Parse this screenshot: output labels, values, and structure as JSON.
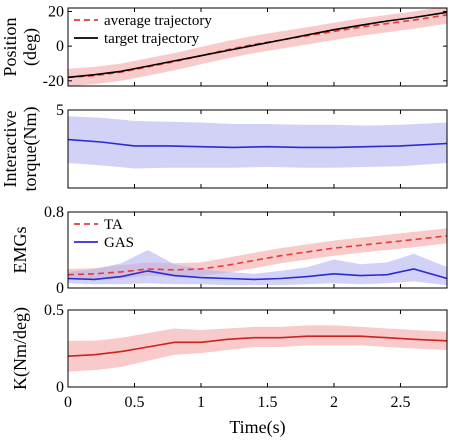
{
  "chart_data": [
    {
      "type": "line",
      "ylabel": [
        "Position",
        "(deg)"
      ],
      "xlim": [
        0,
        2.85
      ],
      "ylim": [
        -23,
        22
      ],
      "xticks": [
        0,
        0.5,
        1,
        1.5,
        2,
        2.5
      ],
      "yticks": [
        -20,
        0,
        20
      ],
      "ytick_labels": [
        "-20",
        "0",
        "20"
      ],
      "legend": {
        "position": "top-left",
        "entries": [
          "average trajectory",
          "target trajectory"
        ]
      },
      "series": [
        {
          "name": "average trajectory",
          "color": "#e8393b",
          "style": "dashed",
          "band_color": "#f4a7a7",
          "x": [
            0,
            0.2,
            0.4,
            0.6,
            0.8,
            1.0,
            1.2,
            1.4,
            1.6,
            1.8,
            2.0,
            2.2,
            2.4,
            2.6,
            2.85
          ],
          "y": [
            -18,
            -17,
            -15,
            -12,
            -9,
            -5.5,
            -2,
            1,
            3.5,
            6,
            8.5,
            11,
            13,
            15,
            18
          ],
          "lower": [
            -23,
            -22,
            -20,
            -17,
            -14,
            -10.5,
            -7,
            -4,
            -1.5,
            1,
            3.5,
            6,
            8,
            10,
            13
          ],
          "upper": [
            -13,
            -12,
            -10,
            -7,
            -4,
            -0.5,
            3,
            6,
            8.5,
            11,
            13.5,
            16,
            18,
            20,
            23
          ]
        },
        {
          "name": "target trajectory",
          "color": "#000000",
          "style": "solid",
          "x": [
            0,
            0.2,
            0.4,
            0.6,
            0.8,
            1.0,
            1.2,
            1.4,
            1.6,
            1.8,
            2.0,
            2.2,
            2.4,
            2.6,
            2.85
          ],
          "y": [
            -18,
            -16.5,
            -14.5,
            -11.5,
            -8.5,
            -5.5,
            -2.5,
            0.5,
            3.5,
            6.5,
            9.5,
            12,
            14.5,
            16.5,
            19.5
          ]
        }
      ]
    },
    {
      "type": "line",
      "ylabel": [
        "Interactive",
        "torque(Nm)"
      ],
      "xlim": [
        0,
        2.85
      ],
      "ylim": [
        0,
        5
      ],
      "xticks": [
        0,
        0.5,
        1,
        1.5,
        2,
        2.5
      ],
      "yticks": [
        0,
        5
      ],
      "ytick_labels": [
        "",
        "5"
      ],
      "series": [
        {
          "name": "",
          "color": "#2b2bd6",
          "style": "solid",
          "band_color": "#b4b4f0",
          "x": [
            0,
            0.25,
            0.5,
            0.75,
            1.0,
            1.25,
            1.5,
            1.75,
            2.0,
            2.25,
            2.5,
            2.85
          ],
          "y": [
            3.1,
            2.95,
            2.7,
            2.7,
            2.65,
            2.6,
            2.65,
            2.6,
            2.6,
            2.65,
            2.7,
            2.85
          ],
          "lower": [
            1.6,
            1.45,
            1.25,
            1.3,
            1.3,
            1.3,
            1.35,
            1.3,
            1.3,
            1.35,
            1.4,
            1.6
          ],
          "upper": [
            4.6,
            4.5,
            4.3,
            4.25,
            4.2,
            4.1,
            4.1,
            4.05,
            4.05,
            4.0,
            4.05,
            4.2
          ]
        }
      ]
    },
    {
      "type": "line",
      "ylabel": [
        "EMGs"
      ],
      "xlim": [
        0,
        2.85
      ],
      "ylim": [
        0,
        0.8
      ],
      "xticks": [
        0,
        0.5,
        1,
        1.5,
        2,
        2.5
      ],
      "yticks": [
        0,
        0.8
      ],
      "ytick_labels": [
        "0",
        "0.8"
      ],
      "legend": {
        "position": "top-left",
        "entries": [
          "TA",
          "GAS"
        ]
      },
      "series": [
        {
          "name": "TA",
          "color": "#e8393b",
          "style": "dashed",
          "band_color": "#f4a7a7",
          "x": [
            0,
            0.2,
            0.4,
            0.6,
            0.8,
            1.0,
            1.2,
            1.4,
            1.6,
            1.8,
            2.0,
            2.2,
            2.4,
            2.6,
            2.85
          ],
          "y": [
            0.14,
            0.15,
            0.17,
            0.2,
            0.19,
            0.2,
            0.24,
            0.29,
            0.34,
            0.38,
            0.42,
            0.45,
            0.48,
            0.51,
            0.55
          ],
          "lower": [
            0.08,
            0.09,
            0.1,
            0.13,
            0.12,
            0.13,
            0.16,
            0.21,
            0.26,
            0.3,
            0.34,
            0.37,
            0.4,
            0.43,
            0.47
          ],
          "upper": [
            0.2,
            0.21,
            0.24,
            0.27,
            0.26,
            0.27,
            0.32,
            0.37,
            0.42,
            0.46,
            0.5,
            0.53,
            0.56,
            0.59,
            0.63
          ]
        },
        {
          "name": "GAS",
          "color": "#2b2bd6",
          "style": "solid",
          "band_color": "#b4b4f0",
          "x": [
            0,
            0.2,
            0.4,
            0.6,
            0.8,
            1.0,
            1.2,
            1.4,
            1.6,
            1.8,
            2.0,
            2.2,
            2.4,
            2.6,
            2.85
          ],
          "y": [
            0.1,
            0.09,
            0.12,
            0.18,
            0.13,
            0.11,
            0.1,
            0.09,
            0.1,
            0.12,
            0.15,
            0.13,
            0.14,
            0.2,
            0.1
          ],
          "lower": [
            0.05,
            0.04,
            0.04,
            0.05,
            0.04,
            0.04,
            0.03,
            0.03,
            0.03,
            0.04,
            0.05,
            0.04,
            0.05,
            0.07,
            0.03
          ],
          "upper": [
            0.17,
            0.2,
            0.26,
            0.4,
            0.25,
            0.2,
            0.17,
            0.15,
            0.18,
            0.22,
            0.3,
            0.25,
            0.27,
            0.36,
            0.22
          ]
        }
      ]
    },
    {
      "type": "line",
      "ylabel": [
        "K(Nm/deg)"
      ],
      "xlabel": "Time(s)",
      "xlim": [
        0,
        2.85
      ],
      "ylim": [
        0,
        0.5
      ],
      "xticks": [
        0,
        0.5,
        1,
        1.5,
        2,
        2.5
      ],
      "xtick_labels": [
        "0",
        "0.5",
        "1",
        "1.5",
        "2",
        "2.5"
      ],
      "yticks": [
        0,
        0.5
      ],
      "ytick_labels": [
        "0",
        "0.5"
      ],
      "series": [
        {
          "name": "",
          "color": "#cc2222",
          "style": "solid",
          "band_color": "#f4a7a7",
          "x": [
            0,
            0.2,
            0.4,
            0.6,
            0.8,
            1.0,
            1.2,
            1.4,
            1.6,
            1.8,
            2.0,
            2.2,
            2.4,
            2.6,
            2.85
          ],
          "y": [
            0.2,
            0.21,
            0.23,
            0.26,
            0.29,
            0.29,
            0.31,
            0.32,
            0.32,
            0.33,
            0.33,
            0.33,
            0.32,
            0.31,
            0.3
          ],
          "lower": [
            0.1,
            0.11,
            0.13,
            0.17,
            0.21,
            0.22,
            0.24,
            0.26,
            0.26,
            0.27,
            0.27,
            0.27,
            0.26,
            0.25,
            0.24
          ],
          "upper": [
            0.3,
            0.3,
            0.32,
            0.35,
            0.38,
            0.37,
            0.38,
            0.39,
            0.39,
            0.4,
            0.4,
            0.39,
            0.38,
            0.37,
            0.36
          ]
        }
      ]
    }
  ]
}
